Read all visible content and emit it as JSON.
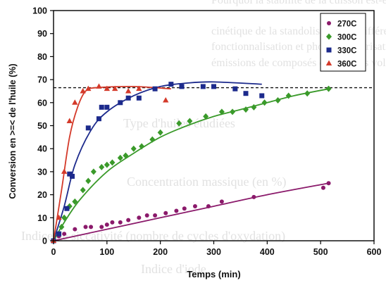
{
  "chart_data": {
    "type": "scatter",
    "title": "",
    "xlabel": "Temps (min)",
    "ylabel": "Conversion en >=< de l'huile (%)",
    "xlim": [
      0,
      600
    ],
    "ylim": [
      0,
      100
    ],
    "x_ticks": [
      "0",
      "100",
      "200",
      "300",
      "400",
      "500",
      "600"
    ],
    "y_ticks": [
      "0",
      "10",
      "20",
      "30",
      "40",
      "50",
      "60",
      "70",
      "80",
      "90",
      "100"
    ],
    "grid": false,
    "legend_position": "top-right",
    "reference_line": {
      "y": 66.5,
      "style": "dashed"
    },
    "series": [
      {
        "name": "270C",
        "color": "#8b1a6b",
        "marker": "circle",
        "points": [
          [
            0,
            0
          ],
          [
            10,
            2
          ],
          [
            20,
            3
          ],
          [
            40,
            5
          ],
          [
            60,
            6
          ],
          [
            70,
            6
          ],
          [
            90,
            6
          ],
          [
            100,
            7
          ],
          [
            110,
            8
          ],
          [
            125,
            8
          ],
          [
            140,
            9
          ],
          [
            160,
            10
          ],
          [
            175,
            11
          ],
          [
            190,
            11
          ],
          [
            210,
            12
          ],
          [
            230,
            13
          ],
          [
            245,
            14
          ],
          [
            265,
            15
          ],
          [
            290,
            15
          ],
          [
            315,
            17
          ],
          [
            375,
            19
          ],
          [
            505,
            23
          ],
          [
            515,
            25
          ]
        ],
        "fit": [
          [
            0,
            0
          ],
          [
            100,
            5
          ],
          [
            200,
            10
          ],
          [
            300,
            15
          ],
          [
            400,
            20
          ],
          [
            515,
            25
          ]
        ]
      },
      {
        "name": "300C",
        "color": "#3a9a2a",
        "marker": "diamond",
        "points": [
          [
            0,
            0
          ],
          [
            15,
            6
          ],
          [
            20,
            10
          ],
          [
            30,
            15
          ],
          [
            40,
            17
          ],
          [
            55,
            22
          ],
          [
            65,
            26
          ],
          [
            75,
            30
          ],
          [
            90,
            32
          ],
          [
            100,
            33
          ],
          [
            110,
            34
          ],
          [
            125,
            36
          ],
          [
            135,
            37
          ],
          [
            150,
            40
          ],
          [
            165,
            41
          ],
          [
            185,
            44
          ],
          [
            200,
            47
          ],
          [
            235,
            51
          ],
          [
            255,
            52
          ],
          [
            285,
            54
          ],
          [
            315,
            56
          ],
          [
            335,
            56
          ],
          [
            360,
            57
          ],
          [
            375,
            58
          ],
          [
            395,
            60
          ],
          [
            420,
            61
          ],
          [
            440,
            63
          ],
          [
            475,
            64
          ],
          [
            515,
            66
          ]
        ],
        "fit": [
          [
            0,
            0
          ],
          [
            20,
            8
          ],
          [
            50,
            18
          ],
          [
            100,
            30
          ],
          [
            150,
            38
          ],
          [
            200,
            45
          ],
          [
            250,
            50
          ],
          [
            300,
            54
          ],
          [
            350,
            57
          ],
          [
            400,
            60
          ],
          [
            450,
            63
          ],
          [
            515,
            66
          ]
        ]
      },
      {
        "name": "330C",
        "color": "#1c2a8c",
        "marker": "square",
        "points": [
          [
            0,
            0
          ],
          [
            10,
            3
          ],
          [
            25,
            14
          ],
          [
            30,
            29
          ],
          [
            35,
            28
          ],
          [
            65,
            49
          ],
          [
            85,
            53
          ],
          [
            90,
            58
          ],
          [
            100,
            58
          ],
          [
            125,
            60
          ],
          [
            140,
            62
          ],
          [
            160,
            62
          ],
          [
            190,
            66
          ],
          [
            220,
            68
          ],
          [
            240,
            67
          ],
          [
            280,
            67
          ],
          [
            300,
            67
          ],
          [
            340,
            66
          ],
          [
            360,
            64
          ],
          [
            390,
            63
          ]
        ],
        "fit": [
          [
            0,
            0
          ],
          [
            20,
            15
          ],
          [
            40,
            33
          ],
          [
            70,
            48
          ],
          [
            100,
            56
          ],
          [
            150,
            63
          ],
          [
            200,
            67
          ],
          [
            250,
            68.5
          ],
          [
            300,
            69
          ],
          [
            390,
            68
          ]
        ]
      },
      {
        "name": "360C",
        "color": "#d43a2a",
        "marker": "triangle",
        "points": [
          [
            0,
            0
          ],
          [
            10,
            10
          ],
          [
            20,
            30
          ],
          [
            30,
            52
          ],
          [
            40,
            60
          ],
          [
            55,
            65
          ],
          [
            65,
            66
          ],
          [
            85,
            67
          ],
          [
            100,
            66
          ],
          [
            115,
            66
          ],
          [
            140,
            65
          ],
          [
            160,
            66
          ],
          [
            210,
            61
          ]
        ],
        "fit": [
          [
            0,
            0
          ],
          [
            15,
            22
          ],
          [
            30,
            45
          ],
          [
            45,
            58
          ],
          [
            60,
            65
          ],
          [
            80,
            66.5
          ],
          [
            150,
            67
          ],
          [
            220,
            66
          ]
        ]
      }
    ]
  }
}
